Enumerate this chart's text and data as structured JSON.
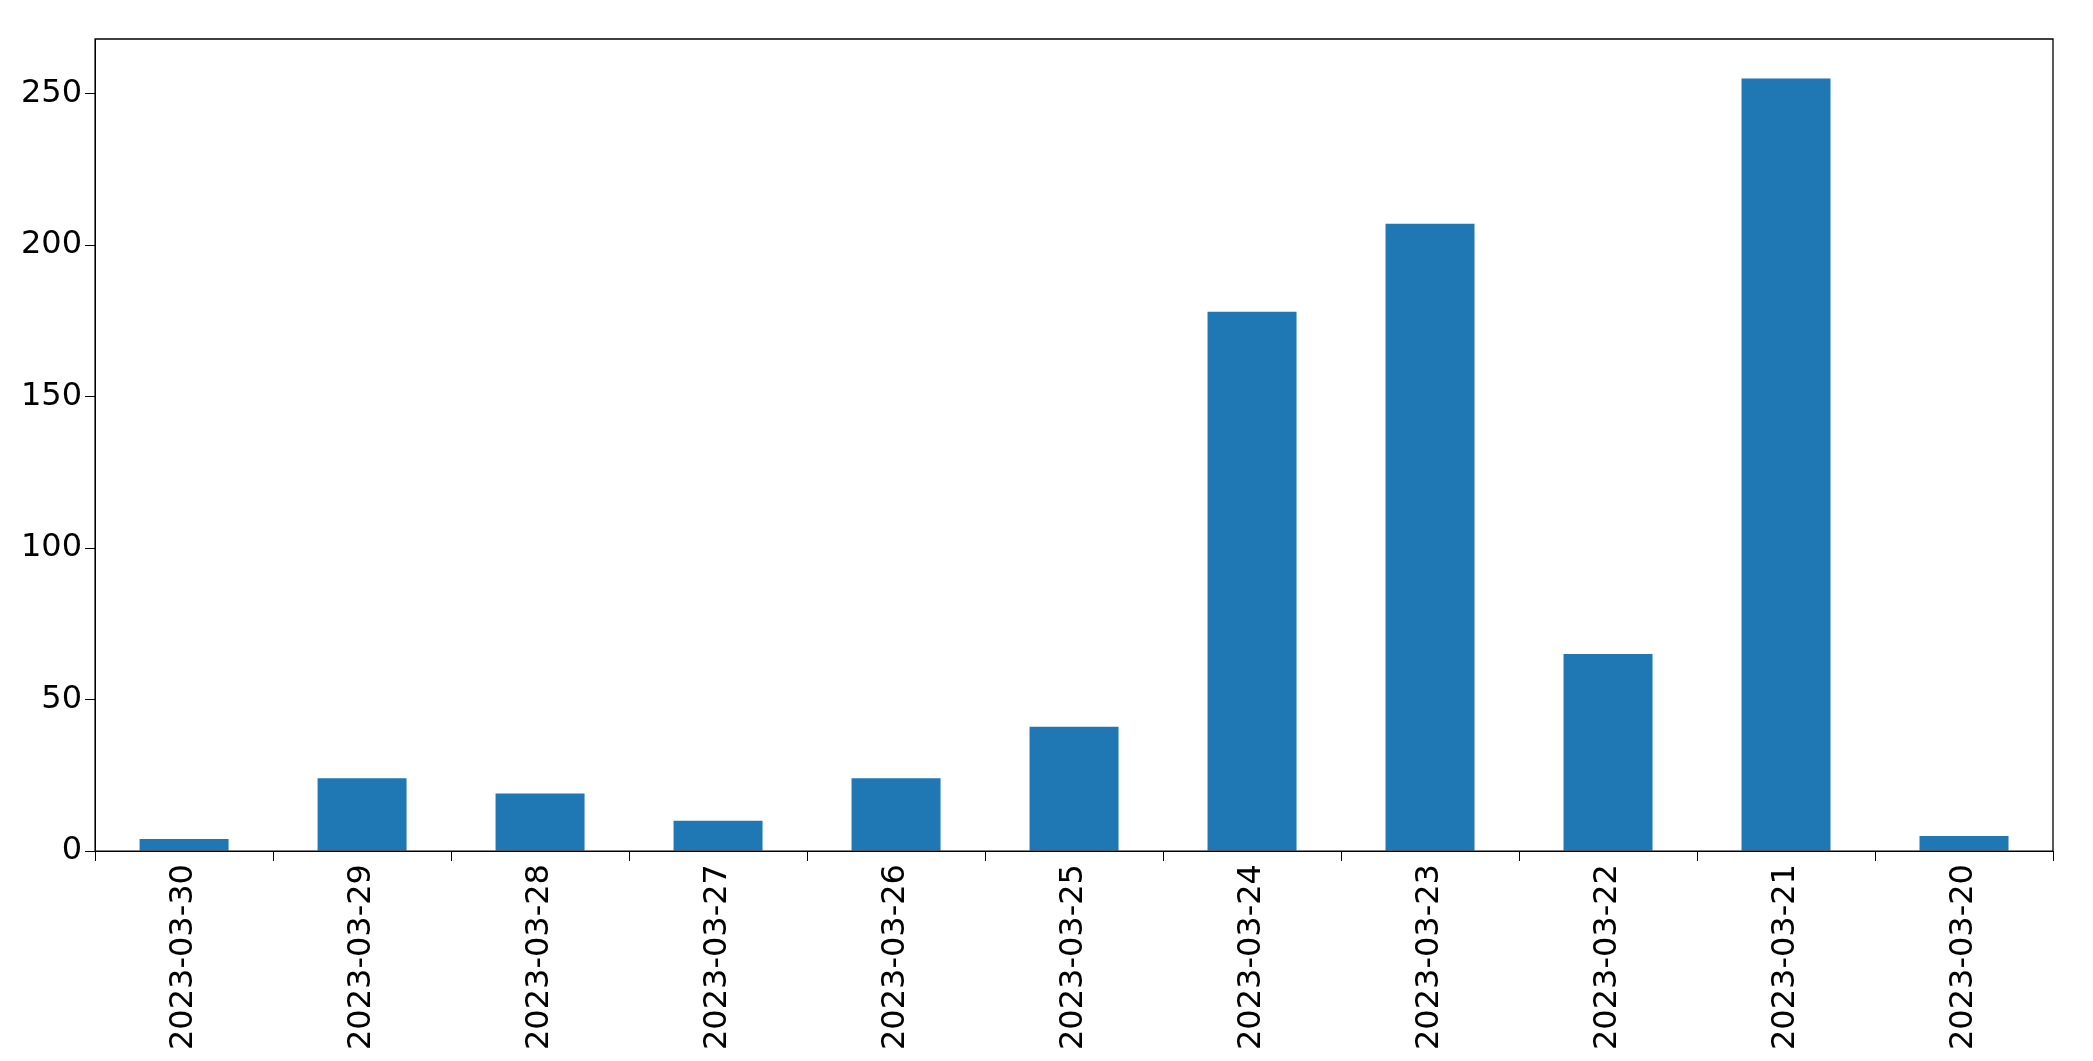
{
  "chart_data": {
    "type": "bar",
    "categories": [
      "2023-03-30",
      "2023-03-29",
      "2023-03-28",
      "2023-03-27",
      "2023-03-26",
      "2023-03-25",
      "2023-03-24",
      "2023-03-23",
      "2023-03-22",
      "2023-03-21",
      "2023-03-20"
    ],
    "values": [
      4,
      24,
      19,
      10,
      24,
      41,
      178,
      207,
      65,
      255,
      5
    ],
    "color": "#1f77b4",
    "ylim": [
      0,
      268
    ],
    "yticks": [
      0,
      50,
      100,
      150,
      200,
      250
    ],
    "grid": false,
    "legend": false
  }
}
